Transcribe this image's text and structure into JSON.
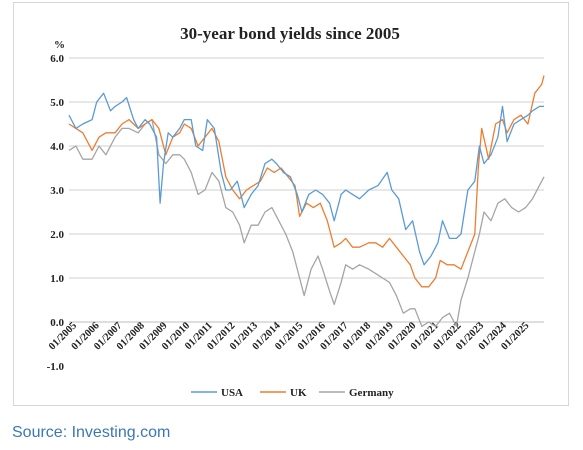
{
  "chart_data": {
    "type": "line",
    "title": "30-year bond yields since 2005",
    "ylabel": "%",
    "ylim": [
      -1.0,
      6.0
    ],
    "y_ticks": [
      "-1.0",
      "0.0",
      "1.0",
      "2.0",
      "3.0",
      "4.0",
      "5.0",
      "6.0"
    ],
    "x_ticks": [
      "01/2005",
      "01/2006",
      "01/2007",
      "01/2008",
      "01/2009",
      "01/2010",
      "01/2011",
      "01/2012",
      "01/2013",
      "01/2014",
      "01/2015",
      "01/2016",
      "01/2017",
      "01/2018",
      "01/2019",
      "01/2020",
      "01/2021",
      "01/2022",
      "01/2023",
      "01/2024",
      "01/2025"
    ],
    "xlim": [
      2005.0,
      2025.6
    ],
    "grid": "horizontal",
    "legend_position": "bottom",
    "series": [
      {
        "name": "USA",
        "color": "#5b9bd5",
        "x": [
          2005.0,
          2005.3,
          2005.6,
          2006.0,
          2006.2,
          2006.5,
          2006.8,
          2007.0,
          2007.3,
          2007.5,
          2007.8,
          2008.0,
          2008.3,
          2008.5,
          2008.8,
          2008.95,
          2009.1,
          2009.3,
          2009.5,
          2009.8,
          2010.0,
          2010.3,
          2010.5,
          2010.8,
          2011.0,
          2011.3,
          2011.6,
          2011.8,
          2012.0,
          2012.3,
          2012.6,
          2012.9,
          2013.2,
          2013.5,
          2013.8,
          2014.0,
          2014.3,
          2014.6,
          2014.9,
          2015.1,
          2015.4,
          2015.7,
          2016.0,
          2016.3,
          2016.5,
          2016.8,
          2017.0,
          2017.3,
          2017.6,
          2018.0,
          2018.4,
          2018.8,
          2019.0,
          2019.3,
          2019.6,
          2019.9,
          2020.2,
          2020.4,
          2020.7,
          2021.0,
          2021.2,
          2021.5,
          2021.8,
          2022.0,
          2022.3,
          2022.6,
          2022.8,
          2023.0,
          2023.3,
          2023.6,
          2023.8,
          2024.0,
          2024.3,
          2024.6,
          2024.9,
          2025.1,
          2025.4,
          2025.6
        ],
        "values": [
          4.7,
          4.4,
          4.5,
          4.6,
          5.0,
          5.2,
          4.8,
          4.9,
          5.0,
          5.1,
          4.6,
          4.4,
          4.6,
          4.5,
          4.2,
          2.7,
          3.6,
          4.3,
          4.2,
          4.4,
          4.6,
          4.6,
          4.0,
          3.9,
          4.6,
          4.4,
          3.4,
          3.0,
          3.0,
          3.2,
          2.6,
          2.9,
          3.1,
          3.6,
          3.7,
          3.6,
          3.4,
          3.3,
          2.9,
          2.5,
          2.9,
          3.0,
          2.9,
          2.7,
          2.3,
          2.9,
          3.0,
          2.9,
          2.8,
          3.0,
          3.1,
          3.4,
          3.0,
          2.8,
          2.1,
          2.3,
          1.6,
          1.3,
          1.5,
          1.8,
          2.3,
          1.9,
          1.9,
          2.0,
          3.0,
          3.2,
          4.0,
          3.6,
          3.8,
          4.2,
          4.9,
          4.1,
          4.5,
          4.6,
          4.7,
          4.8,
          4.9,
          4.9
        ]
      },
      {
        "name": "UK",
        "color": "#ed7d31",
        "x": [
          2005.0,
          2005.3,
          2005.6,
          2006.0,
          2006.3,
          2006.6,
          2007.0,
          2007.3,
          2007.6,
          2008.0,
          2008.3,
          2008.6,
          2008.9,
          2009.2,
          2009.5,
          2009.8,
          2010.0,
          2010.3,
          2010.6,
          2010.9,
          2011.2,
          2011.5,
          2011.8,
          2012.1,
          2012.4,
          2012.7,
          2013.0,
          2013.3,
          2013.6,
          2013.9,
          2014.2,
          2014.5,
          2014.8,
          2015.0,
          2015.3,
          2015.6,
          2015.9,
          2016.2,
          2016.5,
          2016.8,
          2017.0,
          2017.3,
          2017.6,
          2018.0,
          2018.3,
          2018.6,
          2018.9,
          2019.2,
          2019.5,
          2019.8,
          2020.0,
          2020.3,
          2020.6,
          2020.9,
          2021.1,
          2021.4,
          2021.7,
          2022.0,
          2022.3,
          2022.6,
          2022.75,
          2022.9,
          2023.2,
          2023.5,
          2023.8,
          2024.0,
          2024.3,
          2024.6,
          2024.9,
          2025.2,
          2025.5,
          2025.6
        ],
        "values": [
          4.5,
          4.4,
          4.3,
          3.9,
          4.2,
          4.3,
          4.3,
          4.5,
          4.6,
          4.4,
          4.5,
          4.6,
          4.4,
          3.8,
          4.2,
          4.3,
          4.5,
          4.4,
          4.0,
          4.2,
          4.4,
          4.1,
          3.3,
          3.0,
          2.8,
          3.0,
          3.1,
          3.2,
          3.5,
          3.4,
          3.5,
          3.3,
          3.1,
          2.4,
          2.7,
          2.6,
          2.7,
          2.3,
          1.7,
          1.8,
          1.9,
          1.7,
          1.7,
          1.8,
          1.8,
          1.7,
          1.9,
          1.7,
          1.5,
          1.3,
          1.0,
          0.8,
          0.8,
          1.0,
          1.4,
          1.3,
          1.3,
          1.2,
          1.6,
          2.0,
          3.5,
          4.4,
          3.7,
          4.5,
          4.6,
          4.3,
          4.6,
          4.7,
          4.5,
          5.2,
          5.4,
          5.6
        ]
      },
      {
        "name": "Germany",
        "color": "#a5a5a5",
        "x": [
          2005.0,
          2005.3,
          2005.6,
          2006.0,
          2006.3,
          2006.6,
          2007.0,
          2007.3,
          2007.6,
          2008.0,
          2008.3,
          2008.6,
          2008.9,
          2009.2,
          2009.5,
          2009.8,
          2010.0,
          2010.3,
          2010.6,
          2010.9,
          2011.2,
          2011.5,
          2011.8,
          2012.1,
          2012.4,
          2012.6,
          2012.9,
          2013.2,
          2013.5,
          2013.8,
          2014.1,
          2014.4,
          2014.7,
          2015.0,
          2015.2,
          2015.5,
          2015.8,
          2016.0,
          2016.3,
          2016.5,
          2016.8,
          2017.0,
          2017.3,
          2017.6,
          2018.0,
          2018.3,
          2018.6,
          2018.9,
          2019.2,
          2019.5,
          2019.8,
          2020.0,
          2020.3,
          2020.6,
          2020.9,
          2021.2,
          2021.5,
          2021.8,
          2022.0,
          2022.3,
          2022.6,
          2022.8,
          2023.0,
          2023.3,
          2023.6,
          2023.9,
          2024.2,
          2024.5,
          2024.8,
          2025.1,
          2025.4,
          2025.6
        ],
        "values": [
          3.9,
          4.0,
          3.7,
          3.7,
          4.0,
          3.8,
          4.2,
          4.4,
          4.4,
          4.3,
          4.5,
          4.6,
          3.8,
          3.6,
          3.8,
          3.8,
          3.7,
          3.4,
          2.9,
          3.0,
          3.4,
          3.2,
          2.6,
          2.5,
          2.2,
          1.8,
          2.2,
          2.2,
          2.5,
          2.6,
          2.3,
          2.0,
          1.6,
          1.0,
          0.6,
          1.2,
          1.5,
          1.2,
          0.7,
          0.4,
          0.9,
          1.3,
          1.2,
          1.3,
          1.2,
          1.1,
          1.0,
          0.9,
          0.6,
          0.2,
          0.3,
          0.3,
          -0.1,
          0.0,
          -0.1,
          0.1,
          0.2,
          -0.1,
          0.5,
          1.0,
          1.6,
          2.0,
          2.5,
          2.3,
          2.7,
          2.8,
          2.6,
          2.5,
          2.6,
          2.8,
          3.1,
          3.3
        ]
      }
    ]
  },
  "source": "Source: Investing.com"
}
